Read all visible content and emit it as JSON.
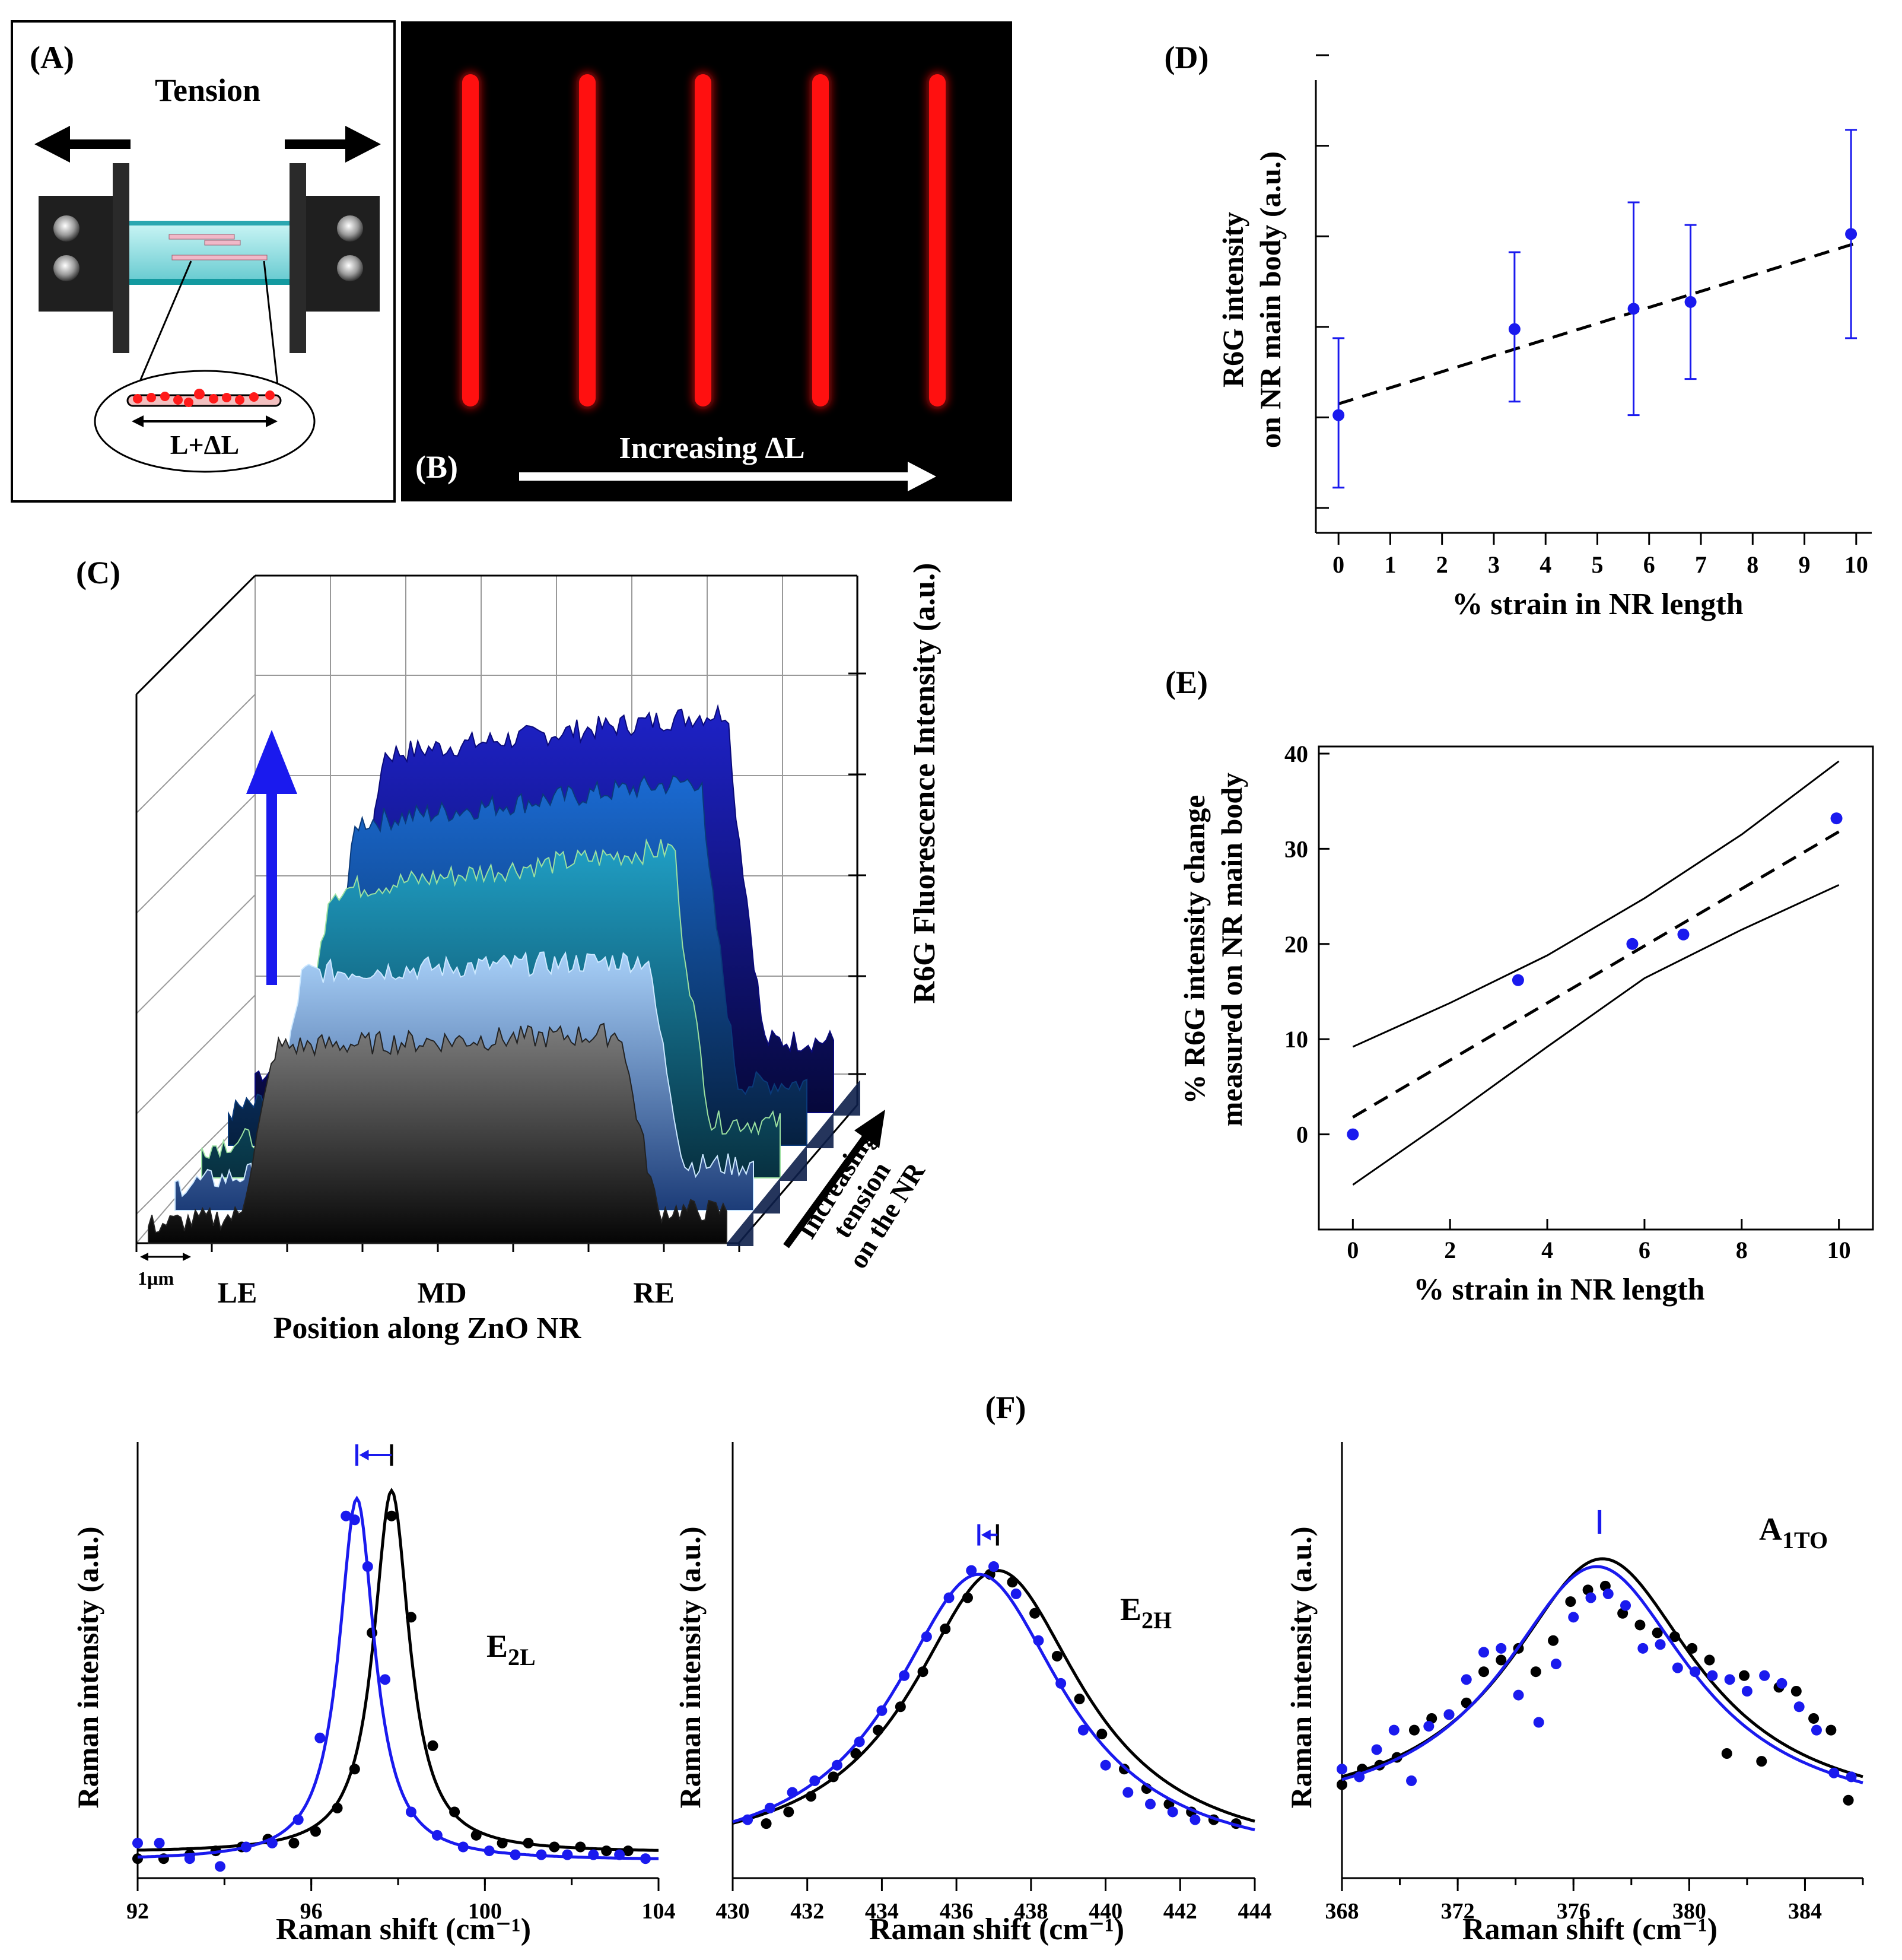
{
  "figure": {
    "colors": {
      "blue": "#1a1aee",
      "black": "#000000",
      "red": "#ff1010",
      "device_glass": "#8fe4e4",
      "c_layers": [
        "#1a1ab8",
        "#1664c8",
        "#1a8cc0",
        "#9ac4f2",
        "#9a9a9a"
      ]
    },
    "panel_a": {
      "label": "(A)",
      "tension_label": "Tension",
      "length_label": "L+ΔL"
    },
    "panel_b": {
      "label": "(B)",
      "arrow_label": "Increasing ΔL",
      "nanorod_count": 5
    },
    "panel_c": {
      "label": "(C)",
      "z_axis_label": "R6G Fluorescence Intensity (a.u.)",
      "x_axis_label": "Position along ZnO NR",
      "positions": [
        "LE",
        "MD",
        "RE"
      ],
      "scale_bar": "1µm",
      "depth_label_lines": [
        "Increasing",
        "tension",
        "on the NR"
      ],
      "layer_count": 5
    }
  },
  "chart_data": [
    {
      "id": "D",
      "label": "(D)",
      "type": "scatter",
      "xlabel": "% strain in NR length",
      "ylabel_lines": [
        "R6G intensity",
        "on NR main body (a.u.)"
      ],
      "xlim": [
        -0.3,
        10.3
      ],
      "ylim": [
        0,
        10
      ],
      "xticks": [
        0,
        1,
        2,
        3,
        4,
        5,
        6,
        7,
        8,
        9,
        10
      ],
      "x": [
        0,
        3.4,
        5.7,
        6.8,
        9.9
      ],
      "y": [
        2.6,
        4.5,
        4.95,
        5.1,
        6.6
      ],
      "err_low": [
        1.0,
        2.9,
        2.6,
        3.4,
        4.3
      ],
      "err_high": [
        4.3,
        6.2,
        7.3,
        6.8,
        8.9
      ],
      "fit_line": {
        "x": [
          0,
          10
        ],
        "y": [
          2.85,
          6.4
        ],
        "style": "dashed"
      }
    },
    {
      "id": "E",
      "label": "(E)",
      "type": "scatter",
      "xlabel": "% strain in NR length",
      "ylabel_lines": [
        "% R6G intensity change",
        "measured on NR main body"
      ],
      "xlim": [
        -0.7,
        10.7
      ],
      "ylim": [
        -10,
        40
      ],
      "xticks": [
        0,
        2,
        4,
        6,
        8,
        10
      ],
      "yticks": [
        0,
        10,
        20,
        30,
        40
      ],
      "x": [
        0,
        3.4,
        5.75,
        6.8,
        9.95
      ],
      "y": [
        0,
        16.2,
        20,
        21,
        33.2
      ],
      "fit_line": {
        "x": [
          0,
          10
        ],
        "y": [
          1.8,
          31.8
        ],
        "style": "dashed"
      },
      "upper_band": {
        "x": [
          0,
          2,
          4,
          6,
          8,
          10
        ],
        "y": [
          9.2,
          13.8,
          18.8,
          24.8,
          31.5,
          39.2
        ]
      },
      "lower_band": {
        "x": [
          0,
          2,
          4,
          6,
          8,
          10
        ],
        "y": [
          -5.3,
          1.8,
          9.2,
          16.4,
          21.5,
          26.2
        ]
      }
    },
    {
      "id": "F1",
      "label": "(F)",
      "type": "line",
      "peak_label": "E",
      "peak_sub": "2L",
      "xlabel": "Raman shift (cm⁻¹)",
      "ylabel": "Raman intensity (a.u.)",
      "xlim": [
        92,
        104
      ],
      "ylim": [
        0,
        1.12
      ],
      "xticks": [
        92,
        96,
        100,
        104
      ],
      "xminor_step": 2,
      "series": [
        {
          "name": "black",
          "color": "#000000",
          "center": 97.85,
          "gamma": 0.5,
          "amp": 0.93,
          "base": 0.065,
          "x": [
            92,
            92.6,
            93.2,
            93.8,
            94.4,
            95.0,
            95.6,
            96.1,
            96.6,
            97.0,
            97.4,
            97.85,
            98.3,
            98.8,
            99.3,
            99.8,
            100.4,
            101.0,
            101.6,
            102.2,
            102.8,
            103.3
          ],
          "y": [
            0.05,
            0.05,
            0.06,
            0.07,
            0.08,
            0.1,
            0.09,
            0.12,
            0.18,
            0.28,
            0.63,
            0.93,
            0.67,
            0.34,
            0.17,
            0.11,
            0.09,
            0.09,
            0.08,
            0.08,
            0.07,
            0.07
          ]
        },
        {
          "name": "blue",
          "color": "#1a1aee",
          "center": 97.05,
          "gamma": 0.5,
          "amp": 0.93,
          "base": 0.045,
          "x": [
            92,
            92.5,
            93.2,
            93.9,
            94.5,
            95.1,
            95.7,
            96.2,
            96.8,
            97.0,
            97.3,
            97.7,
            98.3,
            98.9,
            99.5,
            100.1,
            100.7,
            101.3,
            101.9,
            102.5,
            103.1,
            103.7
          ],
          "y": [
            0.09,
            0.09,
            0.05,
            0.03,
            0.08,
            0.09,
            0.15,
            0.36,
            0.93,
            0.92,
            0.8,
            0.51,
            0.17,
            0.11,
            0.08,
            0.07,
            0.06,
            0.06,
            0.06,
            0.06,
            0.06,
            0.05
          ]
        }
      ],
      "shift_marker": {
        "from": 97.85,
        "to": 97.05
      }
    },
    {
      "id": "F2",
      "type": "line",
      "peak_label": "E",
      "peak_sub": "2H",
      "xlabel": "Raman shift (cm⁻¹)",
      "ylabel": "Raman intensity (a.u.)",
      "xlim": [
        430,
        444
      ],
      "ylim": [
        0,
        1.12
      ],
      "xticks": [
        430,
        432,
        434,
        436,
        438,
        440,
        442,
        444
      ],
      "series": [
        {
          "name": "black",
          "color": "#000000",
          "center": 437.1,
          "gamma": 2.8,
          "amp": 0.75,
          "base": 0.04,
          "x": [
            430.9,
            431.5,
            432.1,
            432.7,
            433.3,
            433.9,
            434.5,
            435.1,
            435.7,
            436.3,
            436.9,
            437.5,
            438.1,
            438.7,
            439.3,
            439.9,
            440.5,
            441.1,
            441.7,
            442.3,
            442.9,
            443.5
          ],
          "y": [
            0.14,
            0.17,
            0.21,
            0.26,
            0.32,
            0.38,
            0.44,
            0.53,
            0.64,
            0.72,
            0.78,
            0.76,
            0.68,
            0.57,
            0.46,
            0.37,
            0.28,
            0.23,
            0.19,
            0.17,
            0.15,
            0.14
          ]
        },
        {
          "name": "blue",
          "color": "#1a1aee",
          "center": 436.6,
          "gamma": 2.8,
          "amp": 0.75,
          "base": 0.03,
          "x": [
            430.4,
            431.0,
            431.6,
            432.2,
            432.8,
            433.4,
            434.0,
            434.6,
            435.2,
            435.8,
            436.4,
            437.0,
            437.6,
            438.2,
            438.8,
            439.4,
            440.0,
            440.6,
            441.2,
            441.8,
            442.4
          ],
          "y": [
            0.15,
            0.18,
            0.22,
            0.25,
            0.29,
            0.35,
            0.43,
            0.52,
            0.62,
            0.72,
            0.79,
            0.8,
            0.73,
            0.61,
            0.5,
            0.38,
            0.29,
            0.22,
            0.19,
            0.17,
            0.15
          ]
        }
      ],
      "shift_marker": {
        "from": 437.1,
        "to": 436.6
      }
    },
    {
      "id": "F3",
      "type": "line",
      "peak_label": "A",
      "peak_sub": "1TO",
      "xlabel": "Raman shift (cm⁻¹)",
      "ylabel": "Raman intensity (a.u.)",
      "xlim": [
        368,
        386
      ],
      "ylim": [
        0,
        1.12
      ],
      "xticks": [
        368,
        372,
        376,
        380,
        384
      ],
      "xminor_step": 2,
      "series": [
        {
          "name": "black",
          "color": "#000000",
          "center": 377.0,
          "gamma": 4.0,
          "amp": 0.67,
          "base": 0.15,
          "x": [
            368,
            368.7,
            369.3,
            369.9,
            370.5,
            371.1,
            371.7,
            372.3,
            372.9,
            373.5,
            374.1,
            374.7,
            375.3,
            375.9,
            376.5,
            377.1,
            377.7,
            378.3,
            378.9,
            379.5,
            380.1,
            380.7,
            381.3,
            381.9,
            382.5,
            383.1,
            383.7,
            384.3,
            384.9,
            385.5
          ],
          "y": [
            0.24,
            0.28,
            0.29,
            0.31,
            0.38,
            0.41,
            0.42,
            0.45,
            0.53,
            0.56,
            0.59,
            0.53,
            0.61,
            0.71,
            0.74,
            0.75,
            0.68,
            0.65,
            0.63,
            0.62,
            0.59,
            0.56,
            0.32,
            0.52,
            0.3,
            0.49,
            0.48,
            0.41,
            0.38,
            0.2
          ]
        },
        {
          "name": "blue",
          "color": "#1a1aee",
          "center": 376.8,
          "gamma": 4.0,
          "amp": 0.66,
          "base": 0.14,
          "x": [
            368,
            368.6,
            369.2,
            369.8,
            370.4,
            371.0,
            371.7,
            372.3,
            372.9,
            373.5,
            374.1,
            374.8,
            375.4,
            376.0,
            376.6,
            377.2,
            377.8,
            378.4,
            379.0,
            379.6,
            380.2,
            380.8,
            381.4,
            382.0,
            382.6,
            383.2,
            383.8,
            384.4,
            385.0,
            385.6
          ],
          "y": [
            0.28,
            0.26,
            0.33,
            0.38,
            0.25,
            0.39,
            0.42,
            0.51,
            0.58,
            0.59,
            0.47,
            0.4,
            0.55,
            0.67,
            0.72,
            0.73,
            0.7,
            0.59,
            0.6,
            0.54,
            0.53,
            0.52,
            0.51,
            0.48,
            0.52,
            0.5,
            0.44,
            0.38,
            0.27,
            0.26
          ]
        }
      ],
      "shift_marker": {
        "from": 376.9,
        "to": 376.9
      }
    }
  ]
}
